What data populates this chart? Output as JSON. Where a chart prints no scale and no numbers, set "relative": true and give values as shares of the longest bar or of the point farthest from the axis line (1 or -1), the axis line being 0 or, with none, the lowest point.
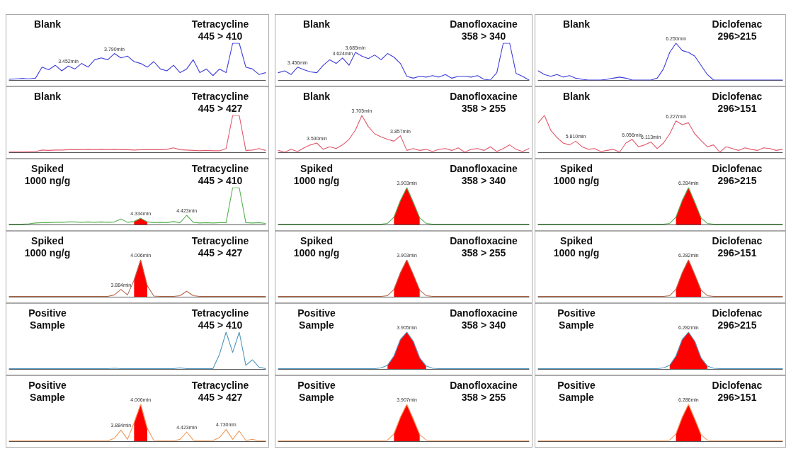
{
  "chart_data": [
    {
      "type": "line",
      "relative": true,
      "annotations": [
        "Blank",
        "Tetracycline\n445 > 410",
        {
          "text": "3.452min",
          "y": 0.38
        },
        {
          "text": "3.790min",
          "y": 0.72
        }
      ],
      "categories": [
        null,
        null,
        null,
        null,
        null,
        null,
        null,
        null,
        null,
        null,
        null,
        null,
        null,
        null,
        null,
        null,
        null,
        null,
        null,
        null,
        null,
        null,
        null,
        null,
        null,
        null,
        null,
        null,
        null,
        null,
        null,
        null,
        null,
        null,
        null,
        null,
        null,
        null,
        null,
        null
      ],
      "series": [
        {
          "color": "#3d3ddb",
          "values": [
            0.02,
            0.03,
            0.04,
            0.03,
            0.05,
            0.35,
            0.28,
            0.4,
            0.25,
            0.38,
            0.3,
            0.45,
            0.35,
            0.55,
            0.6,
            0.55,
            0.72,
            0.6,
            0.65,
            0.5,
            0.45,
            0.35,
            0.5,
            0.3,
            0.25,
            0.4,
            0.2,
            0.3,
            0.55,
            0.2,
            0.3,
            0.12,
            0.3,
            0.2,
            1,
            1,
            0.35,
            0.3,
            0.15,
            0.2
          ]
        }
      ]
    },
    {
      "type": "line",
      "relative": true,
      "annotations": [
        "Blank",
        "Danofloxacine\n358 > 340",
        {
          "text": "3.456min",
          "y": 0.35
        },
        {
          "text": "3.624min",
          "y": 0.6
        },
        {
          "text": "3.685min",
          "y": 0.75
        }
      ],
      "categories": [
        null,
        null,
        null,
        null,
        null,
        null,
        null,
        null,
        null,
        null,
        null,
        null,
        null,
        null,
        null,
        null,
        null,
        null,
        null,
        null,
        null,
        null,
        null,
        null,
        null,
        null,
        null,
        null,
        null,
        null,
        null,
        null,
        null,
        null,
        null,
        null,
        null,
        null,
        null,
        null
      ],
      "series": [
        {
          "color": "#3d3ddb",
          "values": [
            0.2,
            0.25,
            0.15,
            0.35,
            0.28,
            0.22,
            0.2,
            0.4,
            0.55,
            0.45,
            0.6,
            0.4,
            0.75,
            0.65,
            0.58,
            0.68,
            0.55,
            0.72,
            0.62,
            0.45,
            0.1,
            0.05,
            0.1,
            0.08,
            0.12,
            0.08,
            0.15,
            0.05,
            0.1,
            0.1,
            0.08,
            0.12,
            0.02,
            0,
            0.2,
            1,
            1,
            0.18,
            0.1,
            0
          ]
        }
      ]
    },
    {
      "type": "line",
      "relative": true,
      "annotations": [
        "Blank",
        "Diclofenac\n296>215",
        {
          "text": "6.250min",
          "y": 1
        }
      ],
      "categories": [
        null,
        null,
        null,
        null,
        null,
        null,
        null,
        null,
        null,
        null,
        null,
        null,
        null,
        null,
        null,
        null,
        null,
        null,
        null,
        null,
        null,
        null,
        null,
        null,
        null,
        null,
        null,
        null,
        null,
        null,
        null,
        null,
        null,
        null,
        null,
        null,
        null,
        null,
        null,
        null
      ],
      "series": [
        {
          "color": "#3d3ddb",
          "values": [
            0.25,
            0.15,
            0.1,
            0.15,
            0.08,
            0.12,
            0.05,
            0.02,
            0,
            0,
            0,
            0.02,
            0.05,
            0.08,
            0.05,
            0,
            0,
            0,
            0,
            0.05,
            0.3,
            0.75,
            1,
            0.8,
            0.75,
            0.65,
            0.4,
            0.15,
            0,
            0,
            0,
            0,
            0,
            0,
            0,
            0,
            0,
            0,
            0,
            0
          ]
        }
      ]
    },
    {
      "type": "line",
      "relative": true,
      "annotations": [
        "Blank",
        "Tetracycline\n445 > 427"
      ],
      "categories": [
        null,
        null,
        null,
        null,
        null,
        null,
        null,
        null,
        null,
        null,
        null,
        null,
        null,
        null,
        null,
        null,
        null,
        null,
        null,
        null,
        null,
        null,
        null,
        null,
        null,
        null,
        null,
        null,
        null,
        null,
        null,
        null,
        null,
        null,
        null,
        null,
        null,
        null,
        null,
        null
      ],
      "series": [
        {
          "color": "#e2576a",
          "values": [
            0.01,
            0.01,
            0.01,
            0.02,
            0.02,
            0.06,
            0.05,
            0.06,
            0.06,
            0.07,
            0.07,
            0.07,
            0.08,
            0.07,
            0.08,
            0.07,
            0.08,
            0.07,
            0.07,
            0.06,
            0.07,
            0.07,
            0.07,
            0.07,
            0.08,
            0.12,
            0.07,
            0.06,
            0.05,
            0.04,
            0.05,
            0.04,
            0.04,
            0.1,
            1,
            1,
            0.05,
            0.06,
            0.1,
            0.05
          ]
        }
      ]
    },
    {
      "type": "line",
      "relative": true,
      "annotations": [
        "Blank",
        "Danofloxacine\n358 > 255",
        {
          "text": "3.530min",
          "y": 0.25
        },
        {
          "text": "3.705min",
          "y": 1
        },
        {
          "text": "3.857min",
          "y": 0.45
        }
      ],
      "categories": [
        null,
        null,
        null,
        null,
        null,
        null,
        null,
        null,
        null,
        null,
        null,
        null,
        null,
        null,
        null,
        null,
        null,
        null,
        null,
        null,
        null,
        null,
        null,
        null,
        null,
        null,
        null,
        null,
        null,
        null,
        null,
        null,
        null,
        null,
        null,
        null,
        null,
        null,
        null,
        null
      ],
      "series": [
        {
          "color": "#e2576a",
          "values": [
            0.05,
            0,
            0.08,
            0.02,
            0.12,
            0.2,
            0.25,
            0.08,
            0.15,
            0.1,
            0.2,
            0.35,
            0.6,
            1,
            0.7,
            0.5,
            0.42,
            0.35,
            0.3,
            0.45,
            0.05,
            0.1,
            0.05,
            0.08,
            0.02,
            0.08,
            0.1,
            0.05,
            0.12,
            0,
            0.08,
            0.1,
            0.05,
            0.15,
            0.02,
            0.1,
            0.2,
            0.08,
            0.02,
            0.1
          ]
        }
      ]
    },
    {
      "type": "line",
      "relative": true,
      "annotations": [
        "Blank",
        "Diclofenac\n296>151",
        {
          "text": "5.810min",
          "y": 0.3
        },
        {
          "text": "6.056min",
          "y": 0.35
        },
        {
          "text": "6.113min",
          "y": 0.28
        },
        {
          "text": "6.227min",
          "y": 0.85
        }
      ],
      "categories": [
        null,
        null,
        null,
        null,
        null,
        null,
        null,
        null,
        null,
        null,
        null,
        null,
        null,
        null,
        null,
        null,
        null,
        null,
        null,
        null,
        null,
        null,
        null,
        null,
        null,
        null,
        null,
        null,
        null,
        null,
        null,
        null,
        null,
        null,
        null,
        null,
        null,
        null,
        null,
        null
      ],
      "series": [
        {
          "color": "#e2576a",
          "values": [
            0.8,
            1,
            0.6,
            0.4,
            0.25,
            0.2,
            0.3,
            0.15,
            0.08,
            0.1,
            0.02,
            0.05,
            0.08,
            0,
            0.25,
            0.35,
            0.15,
            0.2,
            0.28,
            0.1,
            0.25,
            0.5,
            0.85,
            0.75,
            0.8,
            0.5,
            0.32,
            0.15,
            0.2,
            0,
            0.15,
            0.1,
            0.05,
            0.12,
            0.08,
            0.05,
            0.12,
            0.1,
            0.05,
            0.08
          ]
        }
      ]
    },
    {
      "type": "line",
      "relative": true,
      "annotations": [
        "Spiked\n1000 ng/g",
        "Tetracycline\n445 > 410",
        {
          "text": "4.334min",
          "y": 0.17
        },
        {
          "text": "4.423min",
          "y": 0.25
        }
      ],
      "categories": [
        null,
        null,
        null,
        null,
        null,
        null,
        null,
        null,
        null,
        null,
        null,
        null,
        null,
        null,
        null,
        null,
        null,
        null,
        null,
        null,
        null,
        null,
        null,
        null,
        null,
        null,
        null,
        null,
        null,
        null,
        null,
        null,
        null,
        null,
        null,
        null,
        null,
        null,
        null,
        null
      ],
      "series": [
        {
          "type": "area",
          "color": "#ff0000",
          "values": [
            null,
            null,
            null,
            null,
            null,
            null,
            null,
            null,
            null,
            null,
            null,
            null,
            null,
            null,
            null,
            null,
            null,
            null,
            null,
            0.08,
            0.17,
            0.07,
            null,
            null,
            null,
            null,
            null,
            null,
            null,
            null,
            null,
            null,
            null,
            null,
            null,
            null,
            null,
            null,
            null,
            null
          ]
        },
        {
          "color": "#55b04f",
          "values": [
            0.01,
            0.01,
            0.01,
            0.02,
            0.04,
            0.05,
            0.05,
            0.06,
            0.06,
            0.07,
            0.07,
            0.06,
            0.07,
            0.06,
            0.07,
            0.06,
            0.07,
            0.15,
            0.06,
            0.08,
            0.17,
            0.07,
            0.05,
            0.06,
            0.05,
            0.08,
            0.05,
            0.25,
            0.06,
            0.04,
            0.05,
            0.04,
            0.05,
            0.05,
            1,
            1,
            0.05,
            0.04,
            0.05,
            0.03
          ]
        }
      ]
    },
    {
      "type": "line",
      "relative": true,
      "annotations": [
        "Spiked\n1000 ng/g",
        "Danofloxacine\n358 > 340",
        {
          "text": "3.903min",
          "y": 1
        }
      ],
      "categories": [
        null,
        null,
        null,
        null,
        null,
        null,
        null,
        null,
        null,
        null,
        null,
        null,
        null,
        null,
        null,
        null,
        null,
        null,
        null,
        null,
        null,
        null,
        null,
        null,
        null,
        null,
        null,
        null,
        null,
        null,
        null,
        null,
        null,
        null,
        null,
        null,
        null,
        null,
        null,
        null
      ],
      "series": [
        {
          "type": "area",
          "color": "#ff0000",
          "values": [
            null,
            null,
            null,
            null,
            null,
            null,
            null,
            null,
            null,
            null,
            null,
            null,
            null,
            null,
            null,
            null,
            null,
            null,
            0.2,
            0.65,
            1,
            0.6,
            0.18,
            null,
            null,
            null,
            null,
            null,
            null,
            null,
            null,
            null,
            null,
            null,
            null,
            null,
            null,
            null,
            null,
            null
          ]
        },
        {
          "color": "#55b04f",
          "values": [
            0.01,
            0.01,
            0.01,
            0.01,
            0.01,
            0.01,
            0.01,
            0.01,
            0.01,
            0.01,
            0.01,
            0.01,
            0.01,
            0.01,
            0.01,
            0.01,
            0.01,
            0.03,
            0.2,
            0.65,
            1,
            0.6,
            0.18,
            0.03,
            0.01,
            0.01,
            0.01,
            0.01,
            0.01,
            0.01,
            0.01,
            0.01,
            0.01,
            0.01,
            0.01,
            0.01,
            0.01,
            0.01,
            0.01,
            0.01
          ]
        }
      ]
    },
    {
      "type": "line",
      "relative": true,
      "annotations": [
        "Spiked\n1000 ng/g",
        "Diclofenac\n296>215",
        {
          "text": "6.284min",
          "y": 1
        }
      ],
      "categories": [
        null,
        null,
        null,
        null,
        null,
        null,
        null,
        null,
        null,
        null,
        null,
        null,
        null,
        null,
        null,
        null,
        null,
        null,
        null,
        null,
        null,
        null,
        null,
        null,
        null,
        null,
        null,
        null,
        null,
        null,
        null,
        null,
        null,
        null,
        null,
        null,
        null,
        null,
        null,
        null
      ],
      "series": [
        {
          "type": "area",
          "color": "#ff0000",
          "values": [
            null,
            null,
            null,
            null,
            null,
            null,
            null,
            null,
            null,
            null,
            null,
            null,
            null,
            null,
            null,
            null,
            null,
            null,
            null,
            null,
            null,
            null,
            0.2,
            0.65,
            1,
            0.6,
            0.18,
            null,
            null,
            null,
            null,
            null,
            null,
            null,
            null,
            null,
            null,
            null,
            null,
            null
          ]
        },
        {
          "color": "#55b04f",
          "values": [
            0.01,
            0.01,
            0.01,
            0.01,
            0.01,
            0.01,
            0.01,
            0.01,
            0.01,
            0.01,
            0.01,
            0.01,
            0.01,
            0.01,
            0.01,
            0.01,
            0.01,
            0.01,
            0.01,
            0.01,
            0.01,
            0.03,
            0.2,
            0.65,
            1,
            0.6,
            0.18,
            0.03,
            0.01,
            0.01,
            0.01,
            0.01,
            0.01,
            0.01,
            0.01,
            0.01,
            0.01,
            0.01,
            0.01,
            0.01
          ]
        }
      ]
    },
    {
      "type": "line",
      "relative": true,
      "annotations": [
        "Spiked\n1000 ng/g",
        "Tetracycline\n445 > 427",
        {
          "text": "3.884min",
          "y": 0.2
        },
        {
          "text": "4.006min",
          "y": 1
        }
      ],
      "categories": [
        null,
        null,
        null,
        null,
        null,
        null,
        null,
        null,
        null,
        null,
        null,
        null,
        null,
        null,
        null,
        null,
        null,
        null,
        null,
        null,
        null,
        null,
        null,
        null,
        null,
        null,
        null,
        null,
        null,
        null,
        null,
        null,
        null,
        null,
        null,
        null,
        null,
        null,
        null,
        null
      ],
      "series": [
        {
          "type": "area",
          "color": "#ff0000",
          "values": [
            null,
            null,
            null,
            null,
            null,
            null,
            null,
            null,
            null,
            null,
            null,
            null,
            null,
            null,
            null,
            null,
            null,
            null,
            null,
            0.45,
            1,
            0.3,
            null,
            null,
            null,
            null,
            null,
            null,
            null,
            null,
            null,
            null,
            null,
            null,
            null,
            null,
            null,
            null,
            null,
            null
          ]
        },
        {
          "color": "#b5684a",
          "values": [
            0.01,
            0.01,
            0.01,
            0.01,
            0.01,
            0.01,
            0.01,
            0.01,
            0.01,
            0.01,
            0.01,
            0.01,
            0.01,
            0.01,
            0.01,
            0.01,
            0.05,
            0.2,
            0.05,
            0.45,
            1,
            0.3,
            0.02,
            0.01,
            0.01,
            0.01,
            0.03,
            0.15,
            0.03,
            0.01,
            0.01,
            0.01,
            0.01,
            0.01,
            0.01,
            0.01,
            0.01,
            0.01,
            0.01,
            0.01
          ]
        }
      ]
    },
    {
      "type": "line",
      "relative": true,
      "annotations": [
        "Spiked\n1000 ng/g",
        "Danofloxacine\n358 > 255",
        {
          "text": "3.903min",
          "y": 1
        }
      ],
      "categories": [
        null,
        null,
        null,
        null,
        null,
        null,
        null,
        null,
        null,
        null,
        null,
        null,
        null,
        null,
        null,
        null,
        null,
        null,
        null,
        null,
        null,
        null,
        null,
        null,
        null,
        null,
        null,
        null,
        null,
        null,
        null,
        null,
        null,
        null,
        null,
        null,
        null,
        null,
        null,
        null
      ],
      "series": [
        {
          "type": "area",
          "color": "#ff0000",
          "values": [
            null,
            null,
            null,
            null,
            null,
            null,
            null,
            null,
            null,
            null,
            null,
            null,
            null,
            null,
            null,
            null,
            null,
            null,
            0.2,
            0.65,
            1,
            0.6,
            0.18,
            null,
            null,
            null,
            null,
            null,
            null,
            null,
            null,
            null,
            null,
            null,
            null,
            null,
            null,
            null,
            null,
            null
          ]
        },
        {
          "color": "#b5684a",
          "values": [
            0.01,
            0.01,
            0.01,
            0.01,
            0.01,
            0.01,
            0.01,
            0.01,
            0.01,
            0.01,
            0.01,
            0.01,
            0.01,
            0.01,
            0.01,
            0.01,
            0.01,
            0.03,
            0.2,
            0.65,
            1,
            0.6,
            0.18,
            0.03,
            0.01,
            0.01,
            0.01,
            0.01,
            0.01,
            0.01,
            0.01,
            0.01,
            0.01,
            0.01,
            0.01,
            0.01,
            0.01,
            0.01,
            0.01,
            0.01
          ]
        }
      ]
    },
    {
      "type": "line",
      "relative": true,
      "annotations": [
        "Spiked\n1000 ng/g",
        "Diclofenac\n296>151",
        {
          "text": "6.282min",
          "y": 1
        }
      ],
      "categories": [
        null,
        null,
        null,
        null,
        null,
        null,
        null,
        null,
        null,
        null,
        null,
        null,
        null,
        null,
        null,
        null,
        null,
        null,
        null,
        null,
        null,
        null,
        null,
        null,
        null,
        null,
        null,
        null,
        null,
        null,
        null,
        null,
        null,
        null,
        null,
        null,
        null,
        null,
        null,
        null
      ],
      "series": [
        {
          "type": "area",
          "color": "#ff0000",
          "values": [
            null,
            null,
            null,
            null,
            null,
            null,
            null,
            null,
            null,
            null,
            null,
            null,
            null,
            null,
            null,
            null,
            null,
            null,
            null,
            null,
            null,
            null,
            0.2,
            0.65,
            1,
            0.6,
            0.18,
            null,
            null,
            null,
            null,
            null,
            null,
            null,
            null,
            null,
            null,
            null,
            null,
            null
          ]
        },
        {
          "color": "#b5684a",
          "values": [
            0.01,
            0.01,
            0.01,
            0.01,
            0.01,
            0.01,
            0.01,
            0.01,
            0.01,
            0.01,
            0.01,
            0.01,
            0.01,
            0.01,
            0.01,
            0.01,
            0.01,
            0.01,
            0.01,
            0.01,
            0.01,
            0.03,
            0.2,
            0.65,
            1,
            0.6,
            0.18,
            0.03,
            0.01,
            0.01,
            0.01,
            0.01,
            0.01,
            0.01,
            0.01,
            0.01,
            0.01,
            0.01,
            0.01,
            0.01
          ]
        }
      ]
    },
    {
      "type": "line",
      "relative": true,
      "annotations": [
        "Positive\nSample",
        "Tetracycline\n445 > 410"
      ],
      "categories": [
        null,
        null,
        null,
        null,
        null,
        null,
        null,
        null,
        null,
        null,
        null,
        null,
        null,
        null,
        null,
        null,
        null,
        null,
        null,
        null,
        null,
        null,
        null,
        null,
        null,
        null,
        null,
        null,
        null,
        null,
        null,
        null,
        null,
        null,
        null,
        null,
        null,
        null,
        null,
        null
      ],
      "series": [
        {
          "color": "#4f94bd",
          "values": [
            0.01,
            0.01,
            0.01,
            0.01,
            0.01,
            0.01,
            0.01,
            0.01,
            0.01,
            0.01,
            0.01,
            0.01,
            0.01,
            0.01,
            0.01,
            0.01,
            0.02,
            0.01,
            0.01,
            0.01,
            0.01,
            0.01,
            0.01,
            0.01,
            0.01,
            0.01,
            0.03,
            0.01,
            0.01,
            0.01,
            0.01,
            0.01,
            0.4,
            1,
            0.45,
            1,
            0.1,
            0.25,
            0.05,
            0.01
          ]
        }
      ]
    },
    {
      "type": "line",
      "relative": true,
      "annotations": [
        "Positive\nSample",
        "Danofloxacine\n358 > 340",
        {
          "text": "3.905min",
          "y": 1
        }
      ],
      "categories": [
        null,
        null,
        null,
        null,
        null,
        null,
        null,
        null,
        null,
        null,
        null,
        null,
        null,
        null,
        null,
        null,
        null,
        null,
        null,
        null,
        null,
        null,
        null,
        null,
        null,
        null,
        null,
        null,
        null,
        null,
        null,
        null,
        null,
        null,
        null,
        null,
        null,
        null,
        null,
        null
      ],
      "series": [
        {
          "type": "area",
          "color": "#ff0000",
          "values": [
            null,
            null,
            null,
            null,
            null,
            null,
            null,
            null,
            null,
            null,
            null,
            null,
            null,
            null,
            null,
            null,
            null,
            0.1,
            0.35,
            0.8,
            1,
            0.75,
            0.3,
            0.08,
            null,
            null,
            null,
            null,
            null,
            null,
            null,
            null,
            null,
            null,
            null,
            null,
            null,
            null,
            null,
            null
          ]
        },
        {
          "color": "#4f94bd",
          "values": [
            0.01,
            0.01,
            0.01,
            0.01,
            0.01,
            0.01,
            0.01,
            0.01,
            0.01,
            0.01,
            0.01,
            0.01,
            0.01,
            0.01,
            0.01,
            0.01,
            0.03,
            0.1,
            0.35,
            0.8,
            1,
            0.75,
            0.3,
            0.08,
            0.02,
            0.01,
            0.01,
            0.01,
            0.01,
            0.01,
            0.01,
            0.01,
            0.01,
            0.01,
            0.01,
            0.01,
            0.01,
            0.01,
            0.01,
            0.01
          ]
        }
      ]
    },
    {
      "type": "line",
      "relative": true,
      "annotations": [
        "Positive\nSample",
        "Diclofenac\n296>215",
        {
          "text": "6.282min",
          "y": 1
        }
      ],
      "categories": [
        null,
        null,
        null,
        null,
        null,
        null,
        null,
        null,
        null,
        null,
        null,
        null,
        null,
        null,
        null,
        null,
        null,
        null,
        null,
        null,
        null,
        null,
        null,
        null,
        null,
        null,
        null,
        null,
        null,
        null,
        null,
        null,
        null,
        null,
        null,
        null,
        null,
        null,
        null,
        null
      ],
      "series": [
        {
          "type": "area",
          "color": "#ff0000",
          "values": [
            null,
            null,
            null,
            null,
            null,
            null,
            null,
            null,
            null,
            null,
            null,
            null,
            null,
            null,
            null,
            null,
            null,
            null,
            null,
            null,
            null,
            0.1,
            0.35,
            0.8,
            1,
            0.75,
            0.3,
            0.08,
            null,
            null,
            null,
            null,
            null,
            null,
            null,
            null,
            null,
            null,
            null,
            null
          ]
        },
        {
          "color": "#4f94bd",
          "values": [
            0.01,
            0.01,
            0.01,
            0.01,
            0.01,
            0.01,
            0.01,
            0.01,
            0.01,
            0.01,
            0.01,
            0.01,
            0.01,
            0.01,
            0.01,
            0.01,
            0.01,
            0.01,
            0.01,
            0.01,
            0.03,
            0.1,
            0.35,
            0.8,
            1,
            0.75,
            0.3,
            0.08,
            0.02,
            0.01,
            0.01,
            0.01,
            0.01,
            0.01,
            0.01,
            0.01,
            0.01,
            0.01,
            0.01,
            0.01
          ]
        }
      ]
    },
    {
      "type": "line",
      "relative": true,
      "annotations": [
        "Positive\nSample",
        "Tetracycline\n445 > 427",
        {
          "text": "3.884min",
          "y": 0.3
        },
        {
          "text": "4.006min",
          "y": 1
        },
        {
          "text": "4.423min",
          "y": 0.25
        },
        {
          "text": "4.730min",
          "y": 0.32
        }
      ],
      "categories": [
        null,
        null,
        null,
        null,
        null,
        null,
        null,
        null,
        null,
        null,
        null,
        null,
        null,
        null,
        null,
        null,
        null,
        null,
        null,
        null,
        null,
        null,
        null,
        null,
        null,
        null,
        null,
        null,
        null,
        null,
        null,
        null,
        null,
        null,
        null,
        null,
        null,
        null,
        null,
        null
      ],
      "series": [
        {
          "type": "area",
          "color": "#ff0000",
          "values": [
            null,
            null,
            null,
            null,
            null,
            null,
            null,
            null,
            null,
            null,
            null,
            null,
            null,
            null,
            null,
            null,
            null,
            null,
            null,
            0.5,
            1,
            0.35,
            null,
            null,
            null,
            null,
            null,
            null,
            null,
            null,
            null,
            null,
            null,
            null,
            null,
            null,
            null,
            null,
            null,
            null
          ]
        },
        {
          "color": "#ef9a5b",
          "values": [
            0.01,
            0.01,
            0.01,
            0.01,
            0.01,
            0.01,
            0.01,
            0.01,
            0.01,
            0.01,
            0.01,
            0.01,
            0.01,
            0.01,
            0.01,
            0.01,
            0.08,
            0.3,
            0.05,
            0.5,
            1,
            0.35,
            0.02,
            0.01,
            0.01,
            0.01,
            0.05,
            0.25,
            0.03,
            0.01,
            0.01,
            0.02,
            0.1,
            0.32,
            0.05,
            0.28,
            0.02,
            0.05,
            0.01,
            0.01
          ]
        }
      ]
    },
    {
      "type": "line",
      "relative": true,
      "annotations": [
        "Positive\nSample",
        "Danofloxacine\n358 > 255",
        {
          "text": "3.907min",
          "y": 1
        }
      ],
      "categories": [
        null,
        null,
        null,
        null,
        null,
        null,
        null,
        null,
        null,
        null,
        null,
        null,
        null,
        null,
        null,
        null,
        null,
        null,
        null,
        null,
        null,
        null,
        null,
        null,
        null,
        null,
        null,
        null,
        null,
        null,
        null,
        null,
        null,
        null,
        null,
        null,
        null,
        null,
        null,
        null
      ],
      "series": [
        {
          "type": "area",
          "color": "#ff0000",
          "values": [
            null,
            null,
            null,
            null,
            null,
            null,
            null,
            null,
            null,
            null,
            null,
            null,
            null,
            null,
            null,
            null,
            null,
            null,
            0.2,
            0.65,
            1,
            0.6,
            0.18,
            null,
            null,
            null,
            null,
            null,
            null,
            null,
            null,
            null,
            null,
            null,
            null,
            null,
            null,
            null,
            null,
            null
          ]
        },
        {
          "color": "#ef9a5b",
          "values": [
            0.01,
            0.01,
            0.01,
            0.01,
            0.01,
            0.01,
            0.01,
            0.01,
            0.01,
            0.01,
            0.01,
            0.01,
            0.01,
            0.01,
            0.01,
            0.01,
            0.01,
            0.03,
            0.2,
            0.65,
            1,
            0.6,
            0.18,
            0.03,
            0.01,
            0.01,
            0.01,
            0.01,
            0.01,
            0.01,
            0.01,
            0.01,
            0.01,
            0.01,
            0.01,
            0.01,
            0.01,
            0.01,
            0.01,
            0.01
          ]
        }
      ]
    },
    {
      "type": "line",
      "relative": true,
      "annotations": [
        "Positive\nSample",
        "Diclofenac\n296>151",
        {
          "text": "6.286min",
          "y": 1
        }
      ],
      "categories": [
        null,
        null,
        null,
        null,
        null,
        null,
        null,
        null,
        null,
        null,
        null,
        null,
        null,
        null,
        null,
        null,
        null,
        null,
        null,
        null,
        null,
        null,
        null,
        null,
        null,
        null,
        null,
        null,
        null,
        null,
        null,
        null,
        null,
        null,
        null,
        null,
        null,
        null,
        null,
        null
      ],
      "series": [
        {
          "type": "area",
          "color": "#ff0000",
          "values": [
            null,
            null,
            null,
            null,
            null,
            null,
            null,
            null,
            null,
            null,
            null,
            null,
            null,
            null,
            null,
            null,
            null,
            null,
            null,
            null,
            null,
            null,
            0.2,
            0.65,
            1,
            0.6,
            0.18,
            null,
            null,
            null,
            null,
            null,
            null,
            null,
            null,
            null,
            null,
            null,
            null,
            null
          ]
        },
        {
          "color": "#ef9a5b",
          "values": [
            0.01,
            0.01,
            0.01,
            0.01,
            0.01,
            0.01,
            0.01,
            0.01,
            0.01,
            0.01,
            0.01,
            0.01,
            0.01,
            0.01,
            0.01,
            0.01,
            0.01,
            0.01,
            0.01,
            0.01,
            0.01,
            0.03,
            0.2,
            0.65,
            1,
            0.6,
            0.18,
            0.03,
            0.01,
            0.01,
            0.01,
            0.01,
            0.01,
            0.01,
            0.01,
            0.01,
            0.01,
            0.01,
            0.01,
            0.01
          ]
        }
      ]
    }
  ]
}
